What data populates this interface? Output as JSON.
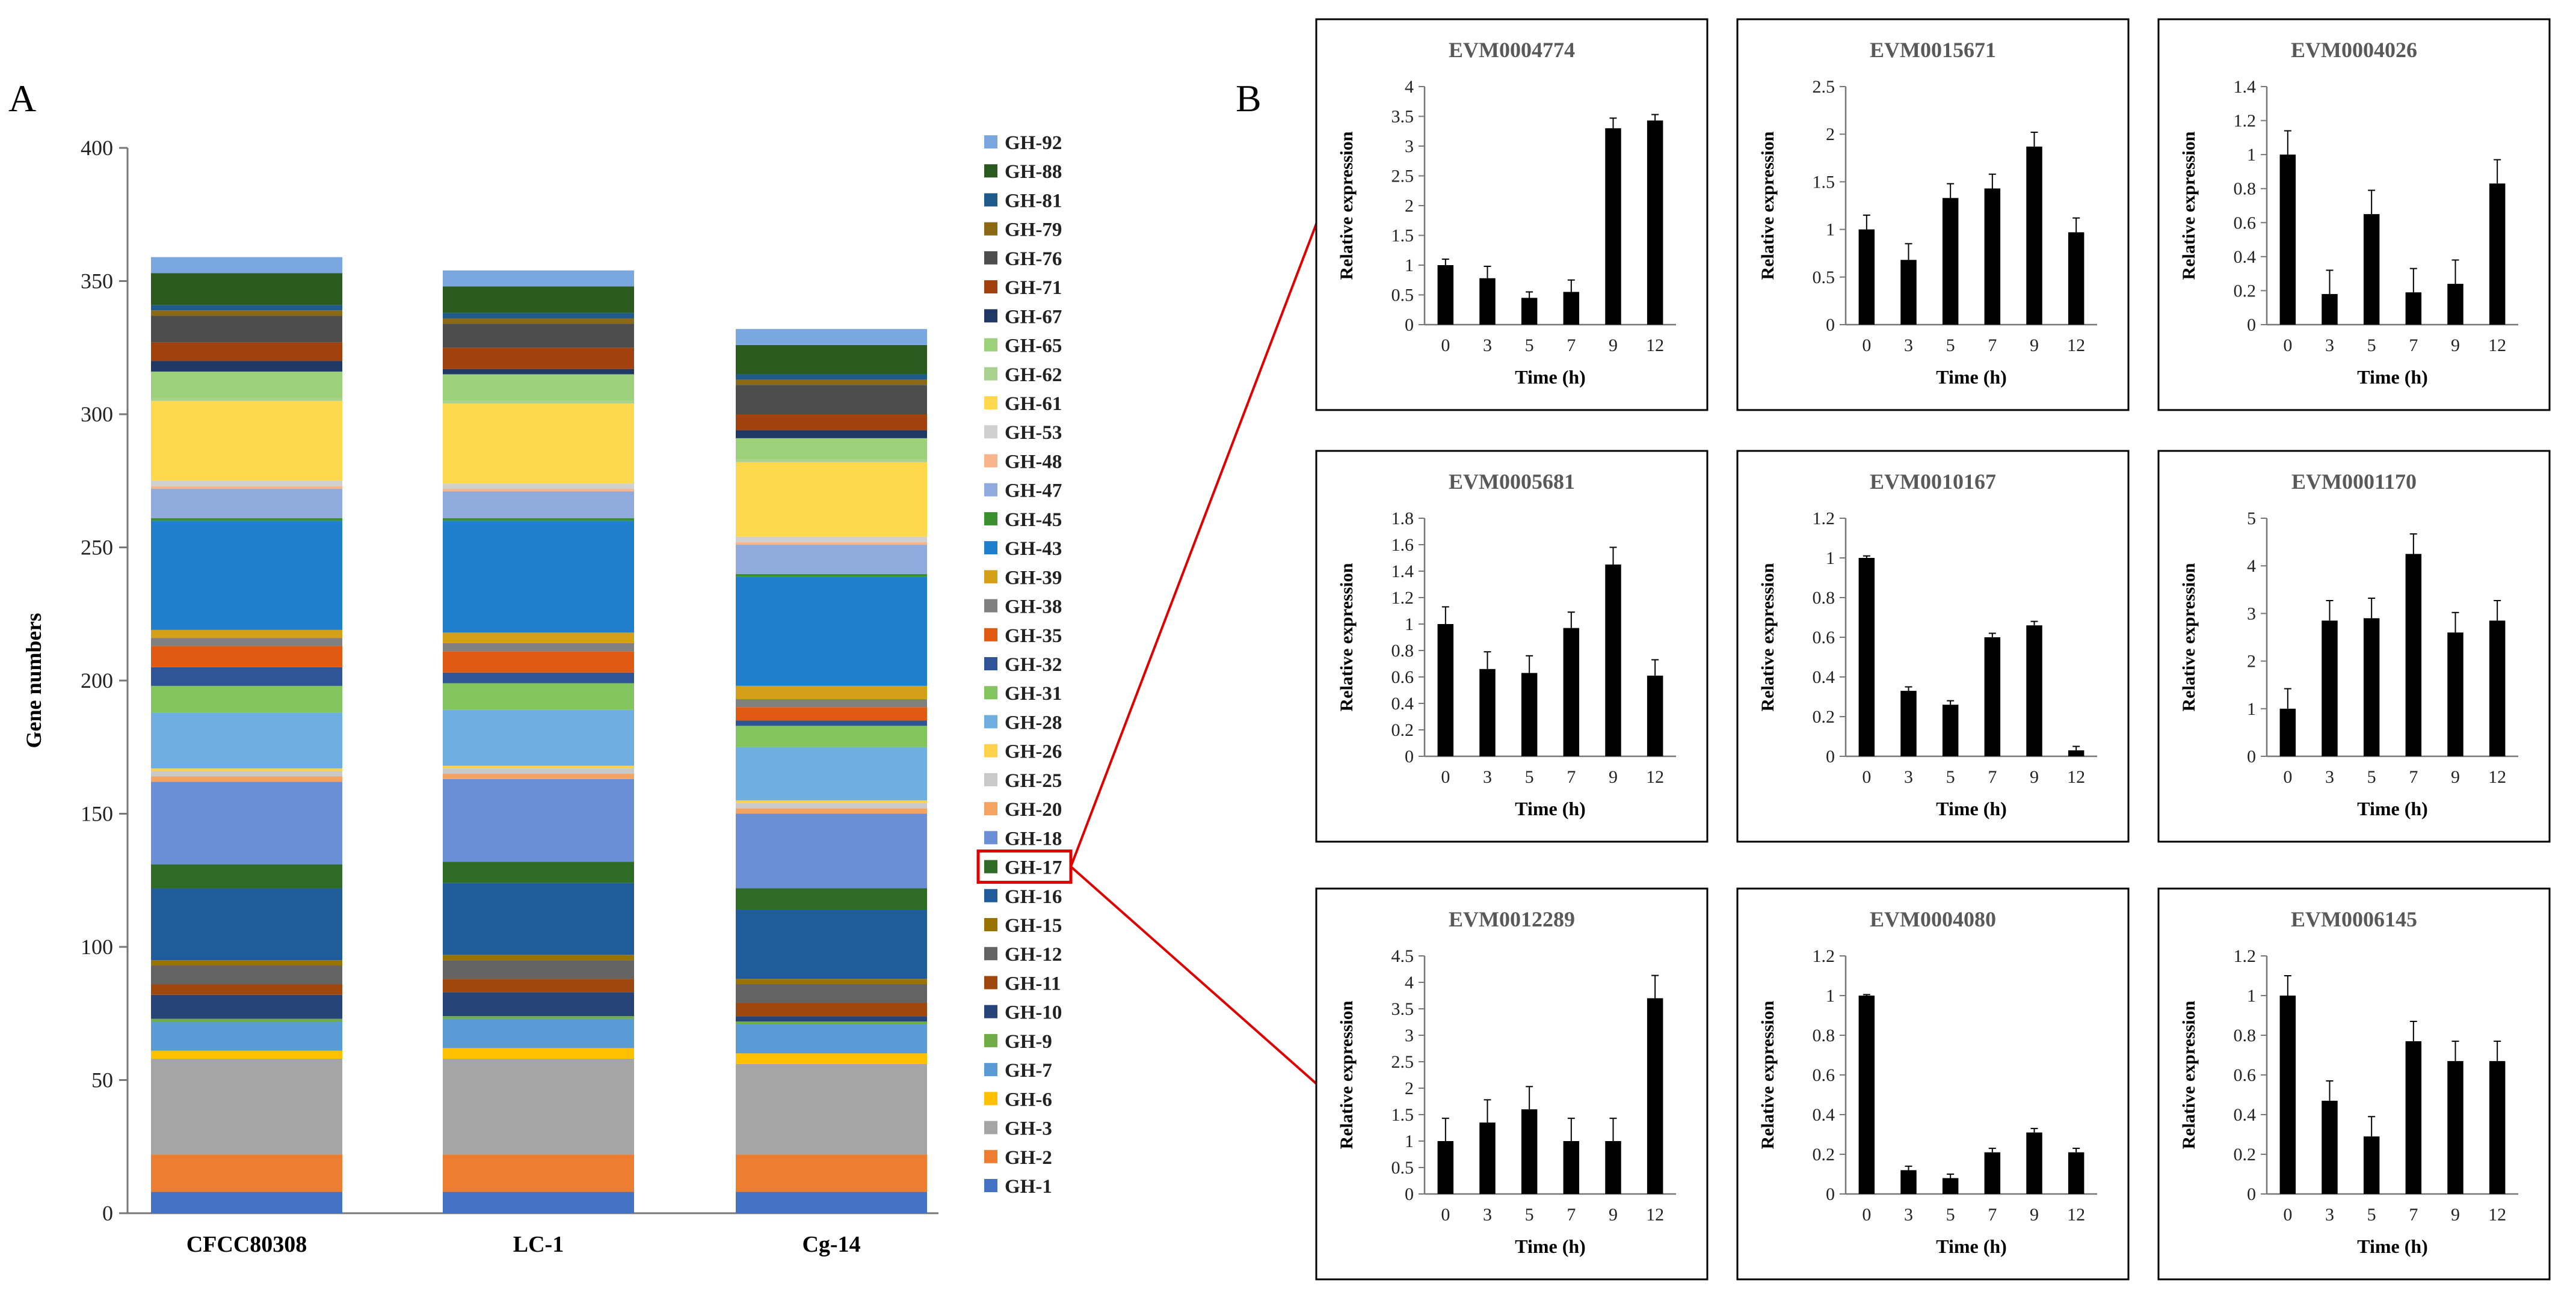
{
  "panel_a_label": "A",
  "panel_b_label": "B",
  "chart_data": [
    {
      "type": "bar",
      "stacked": true,
      "panel": "A",
      "title": "",
      "xlabel": "",
      "ylabel": "Gene numbers",
      "ylim": [
        0,
        400
      ],
      "yticks": [
        0,
        50,
        100,
        150,
        200,
        250,
        300,
        350,
        400
      ],
      "categories": [
        "CFCC80308",
        "LC-1",
        "Cg-14"
      ],
      "highlight": "GH-17",
      "series": [
        {
          "name": "GH-1",
          "color": "#4472C4",
          "values": [
            8,
            8,
            8
          ]
        },
        {
          "name": "GH-2",
          "color": "#ED7D31",
          "values": [
            14,
            14,
            14
          ]
        },
        {
          "name": "GH-3",
          "color": "#A5A5A5",
          "values": [
            36,
            36,
            34
          ]
        },
        {
          "name": "GH-6",
          "color": "#FFC000",
          "values": [
            3,
            4,
            4
          ]
        },
        {
          "name": "GH-7",
          "color": "#5B9BD5",
          "values": [
            11,
            11,
            11
          ]
        },
        {
          "name": "GH-9",
          "color": "#70AD47",
          "values": [
            1,
            1,
            1
          ]
        },
        {
          "name": "GH-10",
          "color": "#264478",
          "values": [
            9,
            9,
            2
          ]
        },
        {
          "name": "GH-11",
          "color": "#9E480E",
          "values": [
            4,
            5,
            5
          ]
        },
        {
          "name": "GH-12",
          "color": "#636363",
          "values": [
            7,
            7,
            7
          ]
        },
        {
          "name": "GH-15",
          "color": "#997300",
          "values": [
            2,
            2,
            2
          ]
        },
        {
          "name": "GH-16",
          "color": "#1F5C99",
          "values": [
            27,
            27,
            26
          ]
        },
        {
          "name": "GH-17",
          "color": "#2E6B24",
          "values": [
            9,
            8,
            8
          ]
        },
        {
          "name": "GH-18",
          "color": "#6A8FD6",
          "values": [
            31,
            31,
            28
          ]
        },
        {
          "name": "GH-20",
          "color": "#F4A460",
          "values": [
            2,
            2,
            2
          ]
        },
        {
          "name": "GH-25",
          "color": "#C9C9C9",
          "values": [
            2,
            2,
            2
          ]
        },
        {
          "name": "GH-26",
          "color": "#FFD14A",
          "values": [
            1,
            1,
            1
          ]
        },
        {
          "name": "GH-28",
          "color": "#6FAEE0",
          "values": [
            21,
            21,
            20
          ]
        },
        {
          "name": "GH-31",
          "color": "#82C45E",
          "values": [
            10,
            10,
            8
          ]
        },
        {
          "name": "GH-32",
          "color": "#2F5597",
          "values": [
            7,
            4,
            2
          ]
        },
        {
          "name": "GH-35",
          "color": "#E05A14",
          "values": [
            8,
            8,
            5
          ]
        },
        {
          "name": "GH-38",
          "color": "#808080",
          "values": [
            3,
            3,
            3
          ]
        },
        {
          "name": "GH-39",
          "color": "#D4A017",
          "values": [
            3,
            4,
            5
          ]
        },
        {
          "name": "GH-43",
          "color": "#1F7FCC",
          "values": [
            41,
            42,
            41
          ]
        },
        {
          "name": "GH-45",
          "color": "#3A8F2E",
          "values": [
            1,
            1,
            1
          ]
        },
        {
          "name": "GH-47",
          "color": "#8FAADC",
          "values": [
            11,
            10,
            11
          ]
        },
        {
          "name": "GH-48",
          "color": "#F8B48A",
          "values": [
            1,
            1,
            1
          ]
        },
        {
          "name": "GH-53",
          "color": "#D0D0D0",
          "values": [
            2,
            2,
            2
          ]
        },
        {
          "name": "GH-61",
          "color": "#FFD94D",
          "values": [
            30,
            30,
            28
          ]
        },
        {
          "name": "GH-62",
          "color": "#A9D18E",
          "values": [
            1,
            1,
            1
          ]
        },
        {
          "name": "GH-65",
          "color": "#9DD07A",
          "values": [
            10,
            10,
            8
          ]
        },
        {
          "name": "GH-67",
          "color": "#203864",
          "values": [
            4,
            2,
            3
          ]
        },
        {
          "name": "GH-71",
          "color": "#A1410D",
          "values": [
            7,
            8,
            6
          ]
        },
        {
          "name": "GH-76",
          "color": "#4D4D4D",
          "values": [
            10,
            9,
            11
          ]
        },
        {
          "name": "GH-79",
          "color": "#8B6914",
          "values": [
            2,
            2,
            2
          ]
        },
        {
          "name": "GH-81",
          "color": "#1E5B8C",
          "values": [
            2,
            2,
            2
          ]
        },
        {
          "name": "GH-88",
          "color": "#2A5A1E",
          "values": [
            12,
            10,
            11
          ]
        },
        {
          "name": "GH-92",
          "color": "#7BA7E1",
          "values": [
            6,
            6,
            6
          ]
        }
      ]
    },
    {
      "type": "bar",
      "panel": "B",
      "title": "EVM0004774",
      "xlabel": "Time (h)",
      "ylabel": "Relative expression",
      "ylim": [
        0,
        4
      ],
      "yticks": [
        "0",
        "0.5",
        "1",
        "1.5",
        "2",
        "2.5",
        "3",
        "3.5",
        "4"
      ],
      "categories": [
        "0",
        "3",
        "5",
        "7",
        "9",
        "12"
      ],
      "values": [
        1.0,
        0.78,
        0.45,
        0.55,
        3.3,
        3.43
      ],
      "errors": [
        0.1,
        0.2,
        0.1,
        0.2,
        0.17,
        0.1
      ]
    },
    {
      "type": "bar",
      "panel": "B",
      "title": "EVM0015671",
      "xlabel": "Time (h)",
      "ylabel": "Relative expression",
      "ylim": [
        0,
        2.5
      ],
      "yticks": [
        "0",
        "0.5",
        "1",
        "1.5",
        "2",
        "2.5"
      ],
      "categories": [
        "0",
        "3",
        "5",
        "7",
        "9",
        "12"
      ],
      "values": [
        1.0,
        0.68,
        1.33,
        1.43,
        1.87,
        0.97
      ],
      "errors": [
        0.15,
        0.17,
        0.15,
        0.15,
        0.15,
        0.15
      ]
    },
    {
      "type": "bar",
      "panel": "B",
      "title": "EVM0004026",
      "xlabel": "Time (h)",
      "ylabel": "Relative expression",
      "ylim": [
        0,
        1.4
      ],
      "yticks": [
        "0",
        "0.2",
        "0.4",
        "0.6",
        "0.8",
        "1",
        "1.2",
        "1.4"
      ],
      "categories": [
        "0",
        "3",
        "5",
        "7",
        "9",
        "12"
      ],
      "values": [
        1.0,
        0.18,
        0.65,
        0.19,
        0.24,
        0.83
      ],
      "errors": [
        0.14,
        0.14,
        0.14,
        0.14,
        0.14,
        0.14
      ]
    },
    {
      "type": "bar",
      "panel": "B",
      "title": "EVM0005681",
      "xlabel": "Time (h)",
      "ylabel": "Relative expression",
      "ylim": [
        0,
        1.8
      ],
      "yticks": [
        "0",
        "0.2",
        "0.4",
        "0.6",
        "0.8",
        "1",
        "1.2",
        "1.4",
        "1.6",
        "1.8"
      ],
      "categories": [
        "0",
        "3",
        "5",
        "7",
        "9",
        "12"
      ],
      "values": [
        1.0,
        0.66,
        0.63,
        0.97,
        1.45,
        0.61
      ],
      "errors": [
        0.13,
        0.13,
        0.13,
        0.12,
        0.13,
        0.12
      ]
    },
    {
      "type": "bar",
      "panel": "B",
      "title": "EVM0010167",
      "xlabel": "Time (h)",
      "ylabel": "Relative expression",
      "ylim": [
        0,
        1.2
      ],
      "yticks": [
        "0",
        "0.2",
        "0.4",
        "0.6",
        "0.8",
        "1",
        "1.2"
      ],
      "categories": [
        "0",
        "3",
        "5",
        "7",
        "9",
        "12"
      ],
      "values": [
        1.0,
        0.33,
        0.26,
        0.6,
        0.66,
        0.03
      ],
      "errors": [
        0.01,
        0.02,
        0.02,
        0.02,
        0.02,
        0.02
      ]
    },
    {
      "type": "bar",
      "panel": "B",
      "title": "EVM0001170",
      "xlabel": "Time (h)",
      "ylabel": "Relative expression",
      "ylim": [
        0,
        5
      ],
      "yticks": [
        "0",
        "1",
        "2",
        "3",
        "4",
        "5"
      ],
      "categories": [
        "0",
        "3",
        "5",
        "7",
        "9",
        "12"
      ],
      "values": [
        1.0,
        2.85,
        2.9,
        4.25,
        2.6,
        2.85
      ],
      "errors": [
        0.42,
        0.42,
        0.42,
        0.42,
        0.42,
        0.42
      ]
    },
    {
      "type": "bar",
      "panel": "B",
      "title": "EVM0012289",
      "xlabel": "Time (h)",
      "ylabel": "Relative expression",
      "ylim": [
        0,
        4.5
      ],
      "yticks": [
        "0",
        "0.5",
        "1",
        "1.5",
        "2",
        "2.5",
        "3",
        "3.5",
        "4",
        "4.5"
      ],
      "categories": [
        "0",
        "3",
        "5",
        "7",
        "9",
        "12"
      ],
      "values": [
        1.0,
        1.35,
        1.6,
        1.0,
        1.0,
        3.7
      ],
      "errors": [
        0.43,
        0.43,
        0.43,
        0.43,
        0.43,
        0.43
      ]
    },
    {
      "type": "bar",
      "panel": "B",
      "title": "EVM0004080",
      "xlabel": "Time (h)",
      "ylabel": "Relative expression",
      "ylim": [
        0,
        1.2
      ],
      "yticks": [
        "0",
        "0.2",
        "0.4",
        "0.6",
        "0.8",
        "1",
        "1.2"
      ],
      "categories": [
        "0",
        "3",
        "5",
        "7",
        "9",
        "12"
      ],
      "values": [
        1.0,
        0.12,
        0.08,
        0.21,
        0.31,
        0.21
      ],
      "errors": [
        0.005,
        0.02,
        0.02,
        0.02,
        0.02,
        0.02
      ]
    },
    {
      "type": "bar",
      "panel": "B",
      "title": "EVM0006145",
      "xlabel": "Time (h)",
      "ylabel": "Relative expression",
      "ylim": [
        0,
        1.2
      ],
      "yticks": [
        "0",
        "0.2",
        "0.4",
        "0.6",
        "0.8",
        "1",
        "1.2"
      ],
      "categories": [
        "0",
        "3",
        "5",
        "7",
        "9",
        "12"
      ],
      "values": [
        1.0,
        0.47,
        0.29,
        0.77,
        0.67,
        0.67
      ],
      "errors": [
        0.1,
        0.1,
        0.1,
        0.1,
        0.1,
        0.1
      ]
    }
  ]
}
